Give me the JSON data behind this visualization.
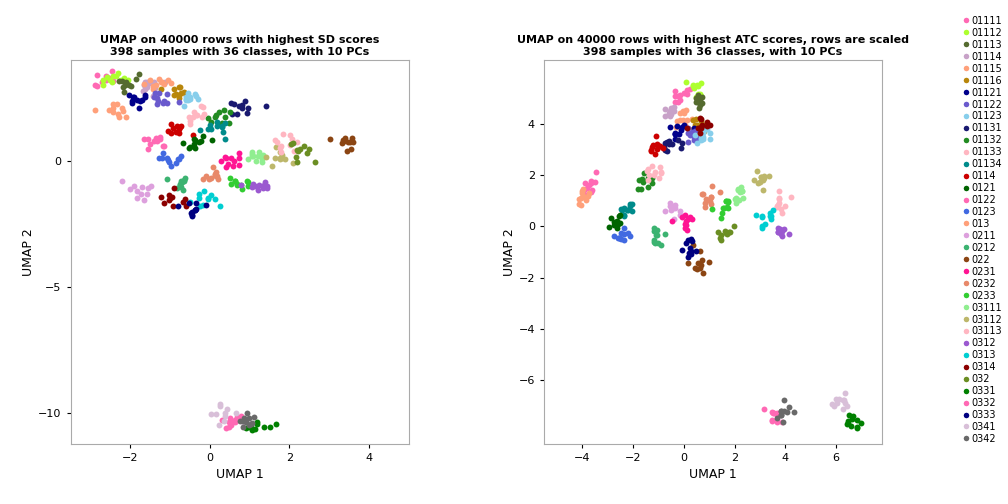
{
  "title1": "UMAP on 40000 rows with highest SD scores\n398 samples with 36 classes, with 10 PCs",
  "title2": "UMAP on 40000 rows with highest ATC scores, rows are scaled\n398 samples with 36 classes, with 10 PCs",
  "xlabel": "UMAP 1",
  "ylabel": "UMAP 2",
  "classes": [
    "01111",
    "01112",
    "01113",
    "01114",
    "01115",
    "01116",
    "01121",
    "01122",
    "01123",
    "01131",
    "01132",
    "01133",
    "01134",
    "0114",
    "0121",
    "0122",
    "0123",
    "013",
    "0211",
    "0212",
    "022",
    "0231",
    "0232",
    "0233",
    "03111",
    "03112",
    "03113",
    "0312",
    "0313",
    "0314",
    "032",
    "0331",
    "0332",
    "0333",
    "0341",
    "0342"
  ],
  "class_colors": {
    "01111": "#FF69B4",
    "01112": "#ADFF2F",
    "01113": "#556B2F",
    "01114": "#C8A2C8",
    "01115": "#FFA07A",
    "01116": "#B8860B",
    "01121": "#00008B",
    "01122": "#6A5ACD",
    "01123": "#87CEEB",
    "01131": "#191970",
    "01132": "#228B22",
    "01133": "#FFB6C1",
    "01134": "#008B8B",
    "0114": "#CC0000",
    "0121": "#006400",
    "0122": "#FF69B4",
    "0123": "#4169E1",
    "013": "#FFA07A",
    "0211": "#DDA0DD",
    "0212": "#3CB371",
    "022": "#8B4513",
    "0231": "#FF1493",
    "0232": "#E8896A",
    "0233": "#32CD32",
    "03111": "#90EE90",
    "03112": "#BDB76B",
    "03113": "#FFB6C1",
    "0312": "#9B59D0",
    "0313": "#00CED1",
    "0314": "#8B0000",
    "032": "#6B8E23",
    "0331": "#008000",
    "0332": "#FF69B4",
    "0333": "#000080",
    "0341": "#D8BFD8",
    "0342": "#696969"
  },
  "plot1_xlim": [
    -3.5,
    5.0
  ],
  "plot1_ylim": [
    -11.2,
    4.0
  ],
  "plot1_xticks": [
    -2,
    0,
    2,
    4
  ],
  "plot1_yticks": [
    -10,
    -5,
    0
  ],
  "plot2_xlim": [
    -5.5,
    7.8
  ],
  "plot2_ylim": [
    -8.5,
    6.5
  ],
  "plot2_xticks": [
    -4,
    -2,
    0,
    2,
    4,
    6
  ],
  "plot2_yticks": [
    -6,
    -4,
    -2,
    0,
    2,
    4
  ]
}
